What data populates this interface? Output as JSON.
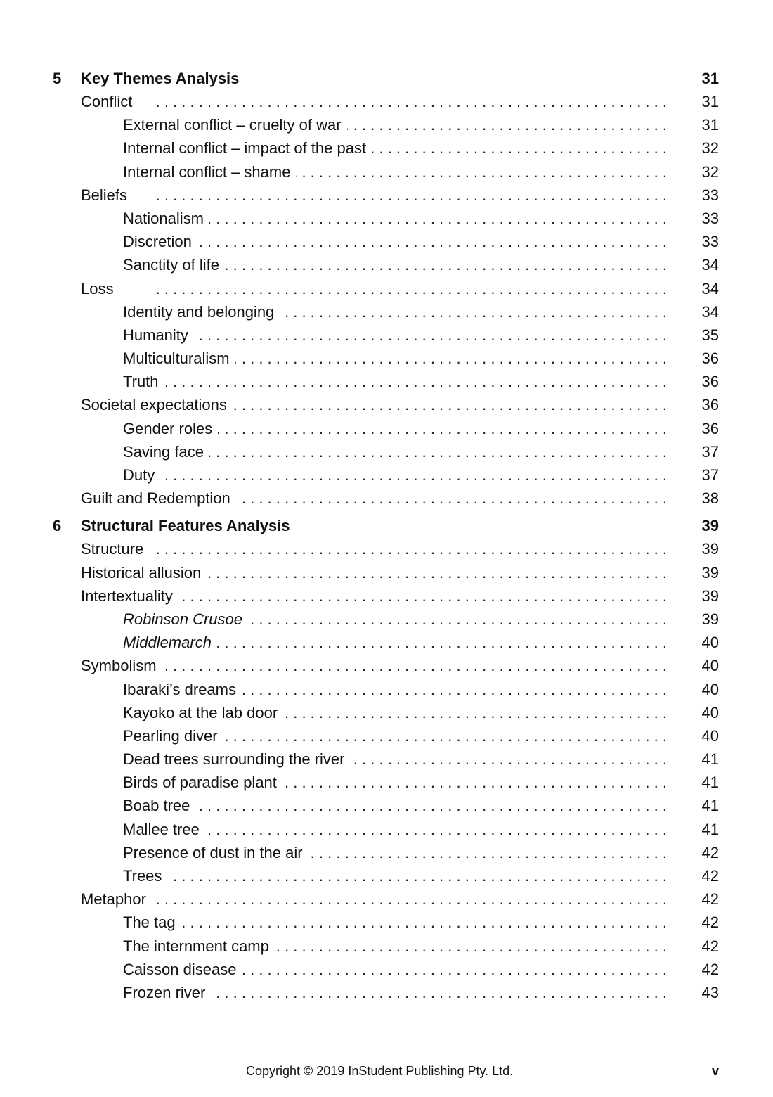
{
  "toc": [
    {
      "type": "chapter",
      "number": "5",
      "label": "Key Themes Analysis",
      "page": "31"
    },
    {
      "level": 1,
      "label": "Conflict",
      "page": "31"
    },
    {
      "level": 2,
      "label": "External conflict – cruelty of war",
      "page": "31"
    },
    {
      "level": 2,
      "label": "Internal conflict – impact of the past",
      "page": "32"
    },
    {
      "level": 2,
      "label": "Internal conflict – shame",
      "page": "32"
    },
    {
      "level": 1,
      "label": "Beliefs",
      "page": "33"
    },
    {
      "level": 2,
      "label": "Nationalism",
      "page": "33"
    },
    {
      "level": 2,
      "label": "Discretion",
      "page": "33"
    },
    {
      "level": 2,
      "label": "Sanctity of life",
      "page": "34"
    },
    {
      "level": 1,
      "label": "Loss",
      "page": "34"
    },
    {
      "level": 2,
      "label": "Identity and belonging",
      "page": "34"
    },
    {
      "level": 2,
      "label": "Humanity",
      "page": "35"
    },
    {
      "level": 2,
      "label": "Multiculturalism",
      "page": "36"
    },
    {
      "level": 2,
      "label": "Truth",
      "page": "36"
    },
    {
      "level": 1,
      "label": "Societal expectations",
      "page": "36"
    },
    {
      "level": 2,
      "label": "Gender roles",
      "page": "36"
    },
    {
      "level": 2,
      "label": "Saving face",
      "page": "37"
    },
    {
      "level": 2,
      "label": "Duty",
      "page": "37"
    },
    {
      "level": 1,
      "label": "Guilt and Redemption",
      "page": "38"
    },
    {
      "type": "chapter",
      "number": "6",
      "label": "Structural Features Analysis",
      "page": "39"
    },
    {
      "level": 1,
      "label": "Structure",
      "page": "39"
    },
    {
      "level": 1,
      "label": "Historical allusion",
      "page": "39"
    },
    {
      "level": 1,
      "label": "Intertextuality",
      "page": "39"
    },
    {
      "level": 2,
      "label": "Robinson Crusoe",
      "page": "39",
      "italic": true
    },
    {
      "level": 2,
      "label": "Middlemarch",
      "page": "40",
      "italic": true
    },
    {
      "level": 1,
      "label": "Symbolism",
      "page": "40"
    },
    {
      "level": 2,
      "label": "Ibaraki’s dreams",
      "page": "40"
    },
    {
      "level": 2,
      "label": "Kayoko at the lab door",
      "page": "40"
    },
    {
      "level": 2,
      "label": "Pearling diver",
      "page": "40"
    },
    {
      "level": 2,
      "label": "Dead trees surrounding the river",
      "page": "41"
    },
    {
      "level": 2,
      "label": "Birds of paradise plant",
      "page": "41"
    },
    {
      "level": 2,
      "label": "Boab tree",
      "page": "41"
    },
    {
      "level": 2,
      "label": "Mallee tree",
      "page": "41"
    },
    {
      "level": 2,
      "label": "Presence of dust in the air",
      "page": "42"
    },
    {
      "level": 2,
      "label": "Trees",
      "page": "42"
    },
    {
      "level": 1,
      "label": "Metaphor",
      "page": "42"
    },
    {
      "level": 2,
      "label": "The tag",
      "page": "42"
    },
    {
      "level": 2,
      "label": "The internment camp",
      "page": "42"
    },
    {
      "level": 2,
      "label": "Caisson disease",
      "page": "42"
    },
    {
      "level": 2,
      "label": "Frozen river",
      "page": "43"
    }
  ],
  "footer": {
    "copyright": "Copyright © 2019 InStudent Publishing Pty. Ltd.",
    "page_number": "v"
  }
}
